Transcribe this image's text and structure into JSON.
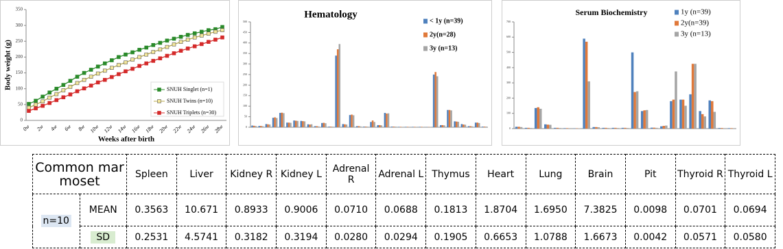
{
  "chart_data": [
    {
      "type": "line",
      "ylabel": "Body weight (g)",
      "xlabel": "Weeks after birth",
      "categories": [
        "0w",
        null,
        "2w",
        null,
        "4w",
        null,
        "6w",
        null,
        "8w",
        null,
        "10w",
        null,
        "12w",
        null,
        "14w",
        null,
        "16w",
        null,
        "18w",
        null,
        "20w",
        null,
        "22w",
        null,
        "24w",
        null,
        "26w",
        null,
        "28w"
      ],
      "ylim": [
        0,
        350
      ],
      "yticks": [
        0,
        50,
        100,
        150,
        200,
        250,
        300,
        350
      ],
      "legend": "lower right",
      "series": [
        {
          "name": "SNUH Singlet (n=1)",
          "color": "#2a8a2a",
          "values": [
            52,
            62,
            75,
            88,
            100,
            112,
            125,
            138,
            150,
            160,
            170,
            180,
            190,
            200,
            208,
            215,
            223,
            230,
            238,
            245,
            252,
            258,
            264,
            270,
            275,
            280,
            285,
            288,
            295
          ]
        },
        {
          "name": "SNUH Twins (n=10)",
          "color": "#f3e69a",
          "values": [
            40,
            50,
            60,
            72,
            83,
            95,
            106,
            118,
            128,
            138,
            148,
            157,
            166,
            175,
            183,
            192,
            200,
            208,
            216,
            224,
            232,
            240,
            248,
            255,
            262,
            268,
            274,
            280,
            285
          ]
        },
        {
          "name": "SNUH Triplets (n=30)",
          "color": "#d42a2a",
          "values": [
            30,
            38,
            46,
            55,
            64,
            73,
            82,
            92,
            101,
            110,
            120,
            128,
            137,
            146,
            155,
            163,
            172,
            180,
            188,
            196,
            204,
            212,
            220,
            227,
            234,
            241,
            248,
            255,
            262
          ]
        }
      ]
    },
    {
      "type": "bar",
      "title": "Hematology",
      "categories": [
        null,
        null,
        null,
        null,
        null,
        null,
        null,
        null,
        null,
        null,
        null,
        null,
        null,
        null,
        null,
        null,
        null,
        null,
        null,
        null,
        null,
        null,
        null,
        null,
        null,
        null,
        null,
        null,
        null,
        null,
        null,
        null,
        null,
        null
      ],
      "ylim": [
        0,
        500
      ],
      "yticks": [
        0,
        50,
        100,
        150,
        200,
        250,
        300,
        350,
        400,
        450,
        500
      ],
      "legend": "upper right",
      "series": [
        {
          "name": "< 1y (n=39)",
          "color": "#4f81bd",
          "values": [
            8,
            6,
            15,
            45,
            68,
            22,
            32,
            30,
            14,
            5,
            20,
            3,
            340,
            15,
            58,
            5,
            3,
            25,
            10,
            68,
            3,
            2,
            2,
            2,
            2,
            1,
            250,
            10,
            82,
            28,
            15,
            5,
            22,
            3
          ]
        },
        {
          "name": "2y(n=28)",
          "color": "#e0793a",
          "values": [
            7,
            6,
            14,
            47,
            69,
            22,
            31,
            29,
            13,
            5,
            21,
            3,
            370,
            14,
            60,
            5,
            3,
            32,
            10,
            65,
            3,
            2,
            2,
            2,
            2,
            1,
            262,
            10,
            82,
            27,
            13,
            5,
            22,
            3
          ]
        },
        {
          "name": "3y (n=13)",
          "color": "#a5a5a5",
          "values": [
            6,
            5,
            13,
            44,
            67,
            21,
            30,
            28,
            14,
            4,
            19,
            3,
            395,
            13,
            57,
            4,
            3,
            25,
            9,
            66,
            3,
            2,
            2,
            2,
            2,
            1,
            242,
            9,
            80,
            26,
            12,
            4,
            20,
            3
          ]
        }
      ]
    },
    {
      "type": "bar",
      "title": "Serum Biochemistry",
      "categories": [
        null,
        null,
        null,
        null,
        null,
        null,
        null,
        null,
        null,
        null,
        null,
        null,
        null,
        null,
        null,
        null,
        null,
        null,
        null,
        null,
        null,
        null,
        null
      ],
      "ylim": [
        0,
        700
      ],
      "yticks": [
        0,
        100,
        200,
        300,
        400,
        500,
        600,
        700
      ],
      "legend": "upper right",
      "series": [
        {
          "name": "1y (n=39)",
          "color": "#4f81bd",
          "values": [
            12,
            5,
            135,
            28,
            5,
            3,
            2,
            590,
            10,
            5,
            5,
            5,
            500,
            115,
            6,
            15,
            180,
            190,
            225,
            115,
            185,
            4,
            3
          ]
        },
        {
          "name": "2y(n=39)",
          "color": "#e0793a",
          "values": [
            12,
            5,
            140,
            26,
            5,
            3,
            2,
            570,
            10,
            5,
            5,
            5,
            240,
            120,
            6,
            18,
            190,
            190,
            425,
            95,
            180,
            4,
            3
          ]
        },
        {
          "name": "3y (n=13)",
          "color": "#a5a5a5",
          "values": [
            10,
            4,
            130,
            25,
            4,
            3,
            2,
            310,
            9,
            4,
            4,
            4,
            245,
            122,
            5,
            20,
            375,
            150,
            425,
            80,
            110,
            3,
            3
          ]
        }
      ]
    }
  ],
  "table": {
    "corner": "Common marmoset",
    "columns": [
      "Spleen",
      "Liver",
      "Kidney R",
      "Kidney L",
      "Adrenal R",
      "Adrenal L",
      "Thymus",
      "Heart",
      "Lung",
      "Brain",
      "Pit",
      "Thyroid R",
      "Thyroid L"
    ],
    "group": "n=10",
    "rows": [
      {
        "label": "MEAN",
        "values": [
          "0.3563",
          "10.671",
          "0.8933",
          "0.9006",
          "0.0710",
          "0.0688",
          "0.1813",
          "1.8704",
          "1.6950",
          "7.3825",
          "0.0098",
          "0.0701",
          "0.0694"
        ]
      },
      {
        "label": "SD",
        "values": [
          "0.2531",
          "4.5741",
          "0.3182",
          "0.3194",
          "0.0280",
          "0.0294",
          "0.1905",
          "0.6653",
          "1.0788",
          "1.6673",
          "0.0042",
          "0.0571",
          "0.0580"
        ]
      }
    ]
  }
}
